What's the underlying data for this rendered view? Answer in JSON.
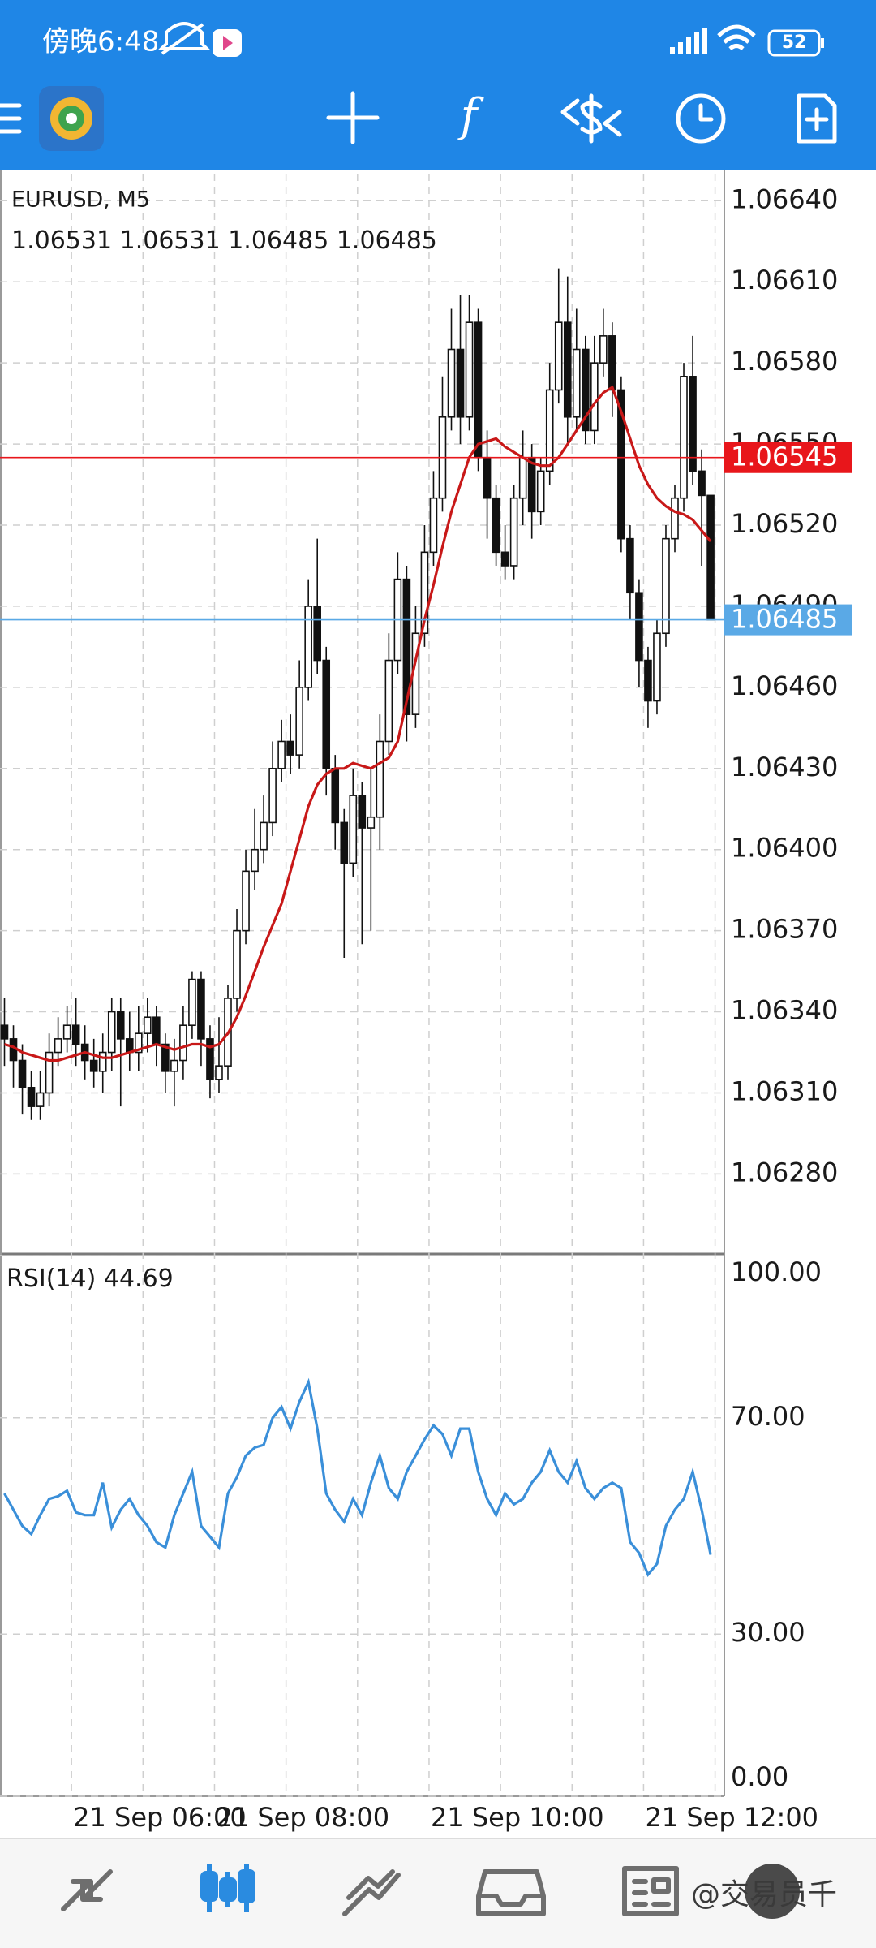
{
  "status_bar": {
    "time": "傍晚6:48",
    "battery": "52"
  },
  "watermark": "@交易员千",
  "chart_data": [
    {
      "type": "candlestick",
      "title": "EURUSD, M5",
      "categories": [
        null,
        null,
        null,
        null,
        null,
        null,
        null,
        null,
        "21 Sep 06:00",
        null,
        null,
        null,
        null,
        null,
        null,
        null,
        null,
        null,
        null,
        null,
        null,
        null,
        null,
        null,
        "21 Sep 08:00",
        null,
        null,
        null,
        null,
        null,
        null,
        null,
        null,
        null,
        null,
        null,
        null,
        null,
        null,
        null,
        null,
        null,
        null,
        null,
        null,
        null,
        null,
        null,
        "21 Sep 10:00",
        null,
        null,
        null,
        null,
        null,
        null,
        null,
        null,
        null,
        null,
        null,
        null,
        null,
        null,
        null,
        null,
        null,
        null,
        null,
        null,
        null,
        null,
        null,
        "21 Sep 12:00",
        null,
        null,
        null,
        null,
        null,
        null,
        null
      ],
      "open": [
        1.06335,
        1.0633,
        1.06322,
        1.06312,
        1.06305,
        1.0631,
        1.06325,
        1.0633,
        1.06335,
        1.06328,
        1.06322,
        1.06318,
        1.06325,
        1.0634,
        1.0633,
        1.06325,
        1.06332,
        1.06338,
        1.06328,
        1.06318,
        1.06322,
        1.06335,
        1.06352,
        1.0633,
        1.06315,
        1.0632,
        1.06345,
        1.0637,
        1.06392,
        1.064,
        1.0641,
        1.0643,
        1.0644,
        1.06435,
        1.0646,
        1.0649,
        1.0647,
        1.0643,
        1.0641,
        1.06395,
        1.0642,
        1.06408,
        1.06412,
        1.0644,
        1.0647,
        1.065,
        1.0645,
        1.0648,
        1.0651,
        1.0653,
        1.0656,
        1.06585,
        1.0656,
        1.06595,
        1.06545,
        1.0653,
        1.0651,
        1.06505,
        1.0653,
        1.06545,
        1.06525,
        1.0654,
        1.0657,
        1.06595,
        1.0656,
        1.06585,
        1.06555,
        1.0658,
        1.0659,
        1.0657,
        1.06515,
        1.06495,
        1.0647,
        1.06455,
        1.0648,
        1.06515,
        1.0653,
        1.06575,
        1.0654,
        1.06531
      ],
      "high": [
        1.06345,
        1.06335,
        1.06328,
        1.06318,
        1.06318,
        1.06332,
        1.06338,
        1.06342,
        1.06345,
        1.06335,
        1.0633,
        1.06332,
        1.06345,
        1.06345,
        1.0634,
        1.06342,
        1.06345,
        1.06342,
        1.06332,
        1.0633,
        1.06342,
        1.06355,
        1.06355,
        1.06335,
        1.06338,
        1.0635,
        1.06378,
        1.064,
        1.06415,
        1.0642,
        1.0644,
        1.06448,
        1.0645,
        1.0647,
        1.065,
        1.06515,
        1.06475,
        1.06435,
        1.06415,
        1.0643,
        1.06425,
        1.0643,
        1.0645,
        1.0648,
        1.0651,
        1.06505,
        1.0649,
        1.0652,
        1.0654,
        1.06575,
        1.066,
        1.06605,
        1.06605,
        1.066,
        1.06555,
        1.06535,
        1.0652,
        1.06535,
        1.06555,
        1.0655,
        1.06545,
        1.0658,
        1.06615,
        1.06612,
        1.066,
        1.0659,
        1.0659,
        1.066,
        1.06595,
        1.06575,
        1.0652,
        1.065,
        1.06475,
        1.06485,
        1.0652,
        1.06535,
        1.0658,
        1.0659,
        1.06548,
        1.06531
      ],
      "low": [
        1.0632,
        1.06312,
        1.06302,
        1.063,
        1.063,
        1.06305,
        1.0632,
        1.06325,
        1.0632,
        1.06315,
        1.06312,
        1.0631,
        1.06318,
        1.06305,
        1.06318,
        1.06318,
        1.06325,
        1.0632,
        1.0631,
        1.06305,
        1.06315,
        1.0633,
        1.0632,
        1.06308,
        1.0631,
        1.06315,
        1.0634,
        1.06365,
        1.06385,
        1.06395,
        1.06405,
        1.06425,
        1.06428,
        1.0643,
        1.06455,
        1.06465,
        1.0642,
        1.064,
        1.0636,
        1.0639,
        1.06365,
        1.0637,
        1.064,
        1.06435,
        1.06465,
        1.0644,
        1.06445,
        1.06475,
        1.06505,
        1.06525,
        1.06555,
        1.0655,
        1.06555,
        1.0654,
        1.06515,
        1.06505,
        1.065,
        1.065,
        1.0652,
        1.06515,
        1.0652,
        1.06535,
        1.06565,
        1.0655,
        1.06555,
        1.0655,
        1.0655,
        1.06575,
        1.0656,
        1.0651,
        1.06485,
        1.0646,
        1.06445,
        1.0645,
        1.06475,
        1.0651,
        1.06525,
        1.06535,
        1.06505,
        1.06485
      ],
      "close": [
        1.0633,
        1.06322,
        1.06312,
        1.06305,
        1.0631,
        1.06325,
        1.0633,
        1.06335,
        1.06328,
        1.06322,
        1.06318,
        1.06325,
        1.0634,
        1.0633,
        1.06325,
        1.06332,
        1.06338,
        1.06328,
        1.06318,
        1.06322,
        1.06335,
        1.06352,
        1.0633,
        1.06315,
        1.0632,
        1.06345,
        1.0637,
        1.06392,
        1.064,
        1.0641,
        1.0643,
        1.0644,
        1.06435,
        1.0646,
        1.0649,
        1.0647,
        1.0643,
        1.0641,
        1.06395,
        1.0642,
        1.06408,
        1.06412,
        1.0644,
        1.0647,
        1.065,
        1.0645,
        1.0648,
        1.0651,
        1.0653,
        1.0656,
        1.06585,
        1.0656,
        1.06595,
        1.06545,
        1.0653,
        1.0651,
        1.06505,
        1.0653,
        1.06545,
        1.06525,
        1.0654,
        1.0657,
        1.06595,
        1.0656,
        1.06585,
        1.06555,
        1.0658,
        1.0659,
        1.0657,
        1.06515,
        1.06495,
        1.0647,
        1.06455,
        1.0648,
        1.06515,
        1.0653,
        1.06575,
        1.0654,
        1.06531,
        1.06485
      ],
      "overlay": {
        "color": "#c81818",
        "values": [
          1.06328,
          1.06327,
          1.06325,
          1.06324,
          1.06323,
          1.06322,
          1.06322,
          1.06323,
          1.06324,
          1.06325,
          1.06324,
          1.06323,
          1.06323,
          1.06324,
          1.06325,
          1.06326,
          1.06327,
          1.06328,
          1.06327,
          1.06326,
          1.06327,
          1.06328,
          1.06328,
          1.06327,
          1.06328,
          1.06332,
          1.06338,
          1.06346,
          1.06355,
          1.06364,
          1.06372,
          1.0638,
          1.06392,
          1.06404,
          1.06416,
          1.06424,
          1.06428,
          1.0643,
          1.0643,
          1.06432,
          1.06431,
          1.0643,
          1.06432,
          1.06434,
          1.0644,
          1.06455,
          1.0647,
          1.06485,
          1.06498,
          1.06512,
          1.06525,
          1.06535,
          1.06545,
          1.0655,
          1.06551,
          1.06552,
          1.06549,
          1.06547,
          1.06545,
          1.06543,
          1.06542,
          1.06542,
          1.06545,
          1.0655,
          1.06555,
          1.0656,
          1.06565,
          1.06569,
          1.06571,
          1.06562,
          1.06552,
          1.06542,
          1.06535,
          1.0653,
          1.06527,
          1.06525,
          1.06524,
          1.06522,
          1.06518,
          1.06514
        ]
      },
      "price_lines": [
        {
          "value": 1.06545,
          "color": "#e8161b"
        },
        {
          "value": 1.06485,
          "color": "#5aa9e6"
        }
      ],
      "ylim": [
        1.06251,
        1.0665
      ],
      "yticks": [
        {
          "value": 1.0664,
          "label": "1.06640"
        },
        {
          "value": 1.0661,
          "label": "1.06610"
        },
        {
          "value": 1.0658,
          "label": "1.06580"
        },
        {
          "value": 1.0655,
          "label": "1.06550"
        },
        {
          "value": 1.0652,
          "label": "1.06520"
        },
        {
          "value": 1.0649,
          "label": "1.06490"
        },
        {
          "value": 1.0646,
          "label": "1.06460"
        },
        {
          "value": 1.0643,
          "label": "1.06430"
        },
        {
          "value": 1.064,
          "label": "1.06400"
        },
        {
          "value": 1.0637,
          "label": "1.06370"
        },
        {
          "value": 1.0634,
          "label": "1.06340"
        },
        {
          "value": 1.0631,
          "label": "1.06310"
        },
        {
          "value": 1.0628,
          "label": "1.06280"
        }
      ],
      "grid": true
    },
    {
      "type": "line",
      "title": "RSI(14)",
      "color": "#3a8fd9",
      "values": [
        56,
        53,
        50,
        48.5,
        52,
        55,
        55.5,
        56.5,
        52.5,
        52,
        52,
        58,
        49.7,
        53,
        55,
        52,
        50,
        47,
        46,
        52,
        56,
        60,
        50,
        48,
        46,
        56,
        59,
        63,
        64.5,
        65,
        70,
        72,
        68,
        73,
        76.6,
        68,
        56,
        53,
        50.8,
        55,
        52,
        58,
        63,
        57,
        55,
        60,
        63,
        66,
        68.6,
        67,
        63,
        68,
        68,
        60,
        55,
        52,
        56,
        54,
        55,
        58,
        60,
        64,
        60,
        58,
        62,
        57,
        55,
        57,
        58,
        57,
        47,
        45,
        41,
        43,
        50,
        53,
        55,
        60,
        53,
        44.69
      ],
      "ylim": [
        0,
        100
      ],
      "yticks": [
        {
          "value": 100,
          "label": "100.00"
        },
        {
          "value": 70,
          "label": "70.00"
        },
        {
          "value": 30,
          "label": "30.00"
        },
        {
          "value": 0,
          "label": "0.00"
        }
      ],
      "grid": true
    }
  ]
}
